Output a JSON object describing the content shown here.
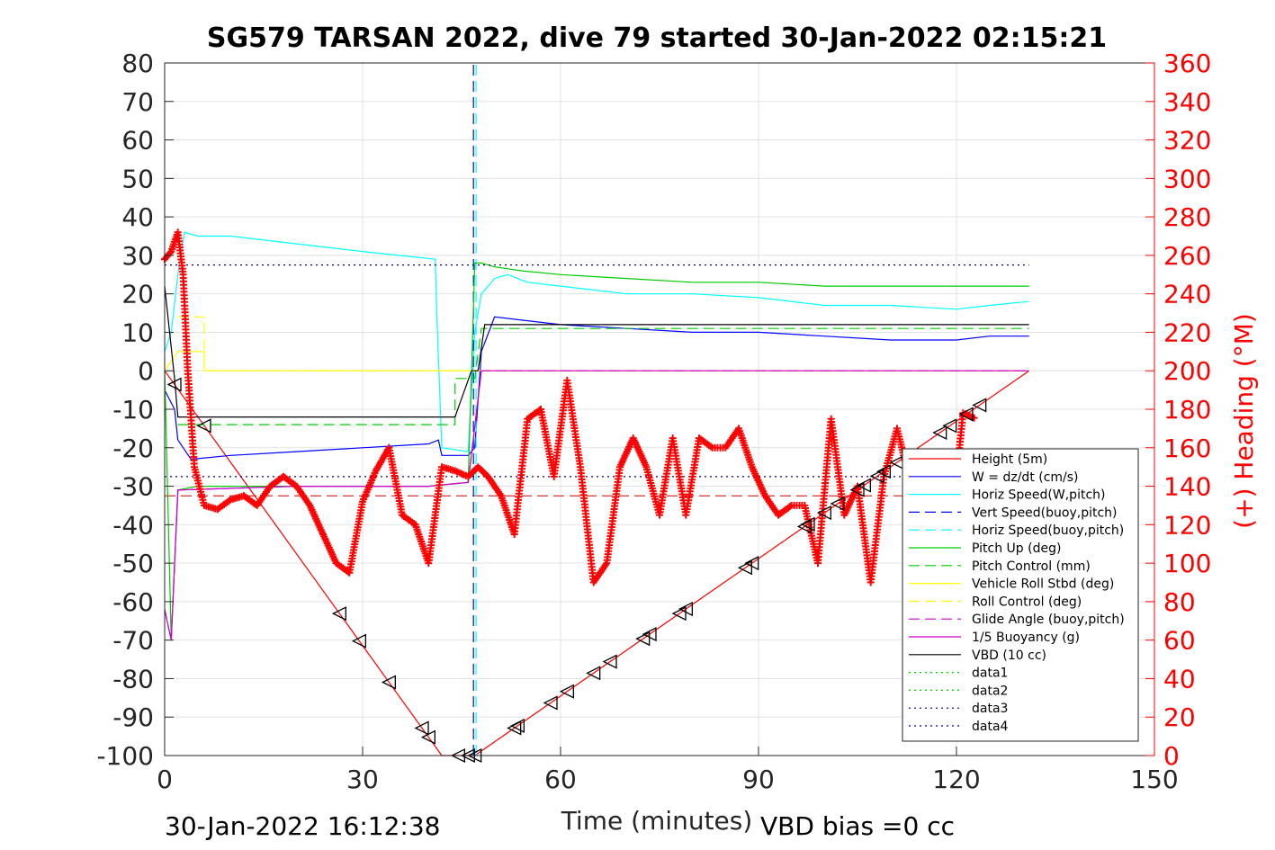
{
  "chart_data": {
    "type": "line",
    "title": "SG579 TARSAN 2022, dive 79 started 30-Jan-2022 02:15:21",
    "xlabel": "Time (minutes)",
    "ylabel_right": "(+) Heading (°M)",
    "footer_left": "30-Jan-2022 16:12:38",
    "footer_right": "VBD bias =0 cc",
    "xlim": [
      0,
      150
    ],
    "ylim": [
      -100,
      80
    ],
    "ylim_right": [
      0,
      360
    ],
    "x_ticks": [
      "0",
      "30",
      "60",
      "90",
      "120",
      "150"
    ],
    "x_tick_values": [
      0,
      30,
      60,
      90,
      120,
      150
    ],
    "y_ticks": [
      "80",
      "70",
      "60",
      "50",
      "40",
      "30",
      "20",
      "10",
      "0",
      "-10",
      "-20",
      "-30",
      "-40",
      "-50",
      "-60",
      "-70",
      "-80",
      "-90",
      "-100"
    ],
    "y_tick_values": [
      80,
      70,
      60,
      50,
      40,
      30,
      20,
      10,
      0,
      -10,
      -20,
      -30,
      -40,
      -50,
      -60,
      -70,
      -80,
      -90,
      -100
    ],
    "y2_ticks": [
      "360",
      "340",
      "320",
      "300",
      "280",
      "260",
      "240",
      "220",
      "200",
      "180",
      "160",
      "140",
      "120",
      "100",
      "80",
      "60",
      "40",
      "20",
      "0"
    ],
    "y2_tick_values": [
      360,
      340,
      320,
      300,
      280,
      260,
      240,
      220,
      200,
      180,
      160,
      140,
      120,
      100,
      80,
      60,
      40,
      20,
      0
    ],
    "grid": true,
    "legend_position": "lower-right",
    "series": [
      {
        "name": "Height (5m)",
        "color": "#ff0000",
        "style": "solid",
        "x": [
          0,
          42,
          47,
          131
        ],
        "y": [
          0,
          -100,
          -100,
          0
        ]
      },
      {
        "name": "W = dz/dt (cm/s)",
        "color": "#0000ff",
        "style": "solid",
        "x": [
          0,
          1.5,
          2,
          4,
          10,
          20,
          30,
          40,
          41.5,
          42,
          46,
          47,
          48,
          50,
          55,
          60,
          70,
          80,
          90,
          100,
          110,
          120,
          125,
          131
        ],
        "y": [
          -5,
          -10,
          -18,
          -23,
          -22,
          -21,
          -20,
          -19,
          -18,
          -22,
          -22,
          -20,
          5,
          14,
          13,
          12,
          11,
          10,
          10,
          9,
          8,
          8,
          9,
          9
        ]
      },
      {
        "name": "Horiz Speed(W,pitch)",
        "color": "#00ffff",
        "style": "solid",
        "x": [
          0,
          1,
          2,
          3,
          5,
          10,
          20,
          30,
          41,
          41.3,
          42,
          46,
          47,
          48,
          50,
          52,
          55,
          60,
          70,
          80,
          90,
          100,
          110,
          120,
          125,
          131
        ],
        "y": [
          5,
          10,
          25,
          36,
          35,
          35,
          33,
          31,
          29,
          12,
          -20,
          -21,
          10,
          20,
          24,
          25,
          23,
          22,
          20,
          20,
          19,
          17,
          17,
          16,
          17,
          18
        ]
      },
      {
        "name": "Vert Speed(buoy,pitch)",
        "color": "#0000ff",
        "style": "dashed",
        "x": [
          46.8,
          46.8
        ],
        "y": [
          -100,
          80
        ]
      },
      {
        "name": "Horiz Speed(buoy,pitch)",
        "color": "#00ffff",
        "style": "dashed",
        "x": [
          47.2,
          47.2
        ],
        "y": [
          -100,
          80
        ]
      },
      {
        "name": "Pitch Up (deg)",
        "color": "#00cc00",
        "style": "solid",
        "x": [
          0,
          1,
          1.5,
          2,
          5,
          20,
          40,
          46,
          47,
          48,
          50,
          54,
          60,
          70,
          80,
          90,
          100,
          110,
          120,
          131
        ],
        "y": [
          0,
          -70,
          -50,
          -31,
          -30,
          -30,
          -30,
          -29,
          28,
          28,
          27,
          26,
          25,
          24,
          23,
          23,
          22,
          22,
          22,
          22
        ]
      },
      {
        "name": "Pitch Control (mm)",
        "color": "#00cc00",
        "style": "dashed",
        "x": [
          2,
          44,
          44,
          47,
          48,
          131
        ],
        "y": [
          -14,
          -14,
          -2,
          -2,
          11,
          11
        ]
      },
      {
        "name": "Vehicle Roll Stbd (deg)",
        "color": "#ffff00",
        "style": "solid",
        "x": [
          0,
          2,
          4,
          6,
          6,
          20,
          40,
          60,
          80,
          100,
          120,
          131
        ],
        "y": [
          0,
          5,
          5,
          5,
          0,
          0,
          0,
          0,
          0,
          0,
          0,
          0
        ]
      },
      {
        "name": "Roll Control (deg)",
        "color": "#ffff00",
        "style": "dashed",
        "x": [
          2,
          6,
          6,
          131
        ],
        "y": [
          14,
          14,
          0,
          0
        ]
      },
      {
        "name": "Glide Angle (buoy,pitch)",
        "color": "#cc00cc",
        "style": "dashed",
        "x": [
          0,
          1,
          2,
          20,
          40,
          46,
          48,
          131
        ],
        "y": [
          -62,
          -70,
          -31,
          -30,
          -30,
          -29,
          0,
          0
        ]
      },
      {
        "name": "1/5 Buoyancy (g)",
        "color": "#cc00cc",
        "style": "solid",
        "x": [
          0,
          1,
          2,
          20,
          40,
          46,
          48,
          131
        ],
        "y": [
          -62,
          -70,
          -31,
          -30,
          -30,
          -29,
          0,
          0
        ]
      },
      {
        "name": "VBD (10 cc)",
        "color": "#000000",
        "style": "solid",
        "x": [
          0,
          1.5,
          2,
          44,
          46.5,
          47.5,
          48.5,
          131
        ],
        "y": [
          22,
          -2,
          -12,
          -12,
          0,
          0,
          12,
          12
        ]
      },
      {
        "name": "data1",
        "color": "#00cc00",
        "style": "dotted",
        "x": [],
        "y": []
      },
      {
        "name": "data2",
        "color": "#00cc00",
        "style": "dotted",
        "x": [],
        "y": []
      },
      {
        "name": "data3",
        "color": "#000080",
        "style": "dotted",
        "x": [
          0,
          131
        ],
        "y": [
          27.5,
          27.5
        ]
      },
      {
        "name": "data4",
        "color": "#000080",
        "style": "dotted",
        "x": [
          0,
          131
        ],
        "y": [
          -27.5,
          -27.5
        ]
      }
    ],
    "reference_lines": [
      {
        "color": "#cc0000",
        "style": "dashed",
        "axis": "left",
        "y": -32.5,
        "x": [
          0,
          131
        ]
      }
    ],
    "heading_series": {
      "name": "Heading",
      "axis": "right",
      "color": "#ff0000",
      "marker": "+",
      "x": [
        0,
        1,
        2,
        2.8,
        3.5,
        4.5,
        6,
        8,
        10,
        12,
        14,
        16,
        18,
        20,
        22,
        24,
        26,
        28,
        30,
        32,
        34,
        36,
        38,
        40,
        42,
        44,
        46,
        47.5,
        49,
        51,
        53,
        55,
        57,
        59,
        61,
        63,
        65,
        67,
        69,
        71,
        73,
        75,
        77,
        79,
        81,
        83,
        85,
        87,
        89,
        91,
        93,
        95,
        97,
        99,
        101,
        103,
        105,
        107,
        109,
        111,
        113,
        115,
        117,
        119,
        121,
        123
      ],
      "y": [
        258,
        262,
        272,
        250,
        200,
        150,
        130,
        128,
        133,
        135,
        130,
        140,
        145,
        140,
        130,
        115,
        100,
        95,
        132,
        148,
        160,
        125,
        120,
        100,
        150,
        148,
        145,
        150,
        145,
        135,
        115,
        175,
        180,
        145,
        195,
        150,
        90,
        100,
        150,
        165,
        150,
        125,
        165,
        125,
        165,
        160,
        160,
        170,
        150,
        135,
        125,
        130,
        130,
        100,
        175,
        125,
        140,
        90,
        145,
        170,
        142,
        115,
        110,
        112,
        178,
        175
      ]
    }
  }
}
